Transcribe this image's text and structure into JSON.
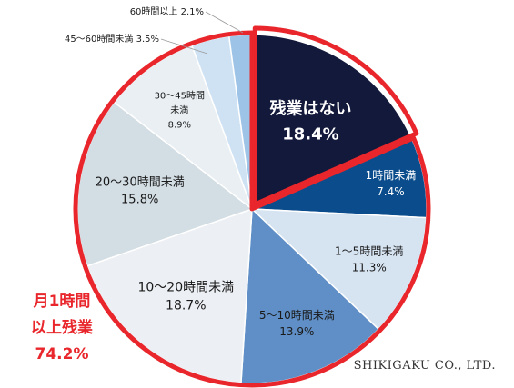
{
  "chart_data": {
    "type": "pie",
    "start": "top",
    "direction": "clockwise",
    "slices": [
      {
        "label": "残業はない",
        "value": 18.4,
        "value_label": "18.4%",
        "color": "#13193a",
        "text_color": "#ffffff",
        "emphasis": true
      },
      {
        "label": "1時間未満",
        "value": 7.4,
        "value_label": "7.4%",
        "color": "#0b4d8c",
        "text_color": "#ffffff"
      },
      {
        "label": "1～5時間未満",
        "value": 11.3,
        "value_label": "11.3%",
        "color": "#d6e3f1",
        "text_color": "#1a1a1a"
      },
      {
        "label": "5～10時間未満",
        "value": 13.9,
        "value_label": "13.9%",
        "color": "#5f8fc6",
        "text_color": "#1a1a1a"
      },
      {
        "label": "10～20時間未満",
        "value": 18.7,
        "value_label": "18.7%",
        "color": "#eceff3",
        "text_color": "#1a1a1a"
      },
      {
        "label": "20～30時間未満",
        "value": 15.8,
        "value_label": "15.8%",
        "color": "#d2dde4",
        "text_color": "#1a1a1a"
      },
      {
        "label": "30～45時間\n未満",
        "value": 8.9,
        "value_label": "8.9%",
        "color": "#e9eff3",
        "text_color": "#1a1a1a"
      },
      {
        "label": "45～60時間未満",
        "value": 3.5,
        "value_label": "3.5%",
        "color": "#cfe2f3",
        "text_color": "#1a1a1a",
        "outside": true
      },
      {
        "label": "60時間以上",
        "value": 2.1,
        "value_label": "2.1%",
        "color": "#9dc3e6",
        "text_color": "#1a1a1a",
        "outside": true
      }
    ],
    "highlight": {
      "color": "#e8262b"
    }
  },
  "callout": {
    "line1": "月1時間",
    "line2": "以上残業",
    "line3": "74.2%"
  },
  "footer": {
    "company": "SHIKIGAKU CO., LTD."
  }
}
